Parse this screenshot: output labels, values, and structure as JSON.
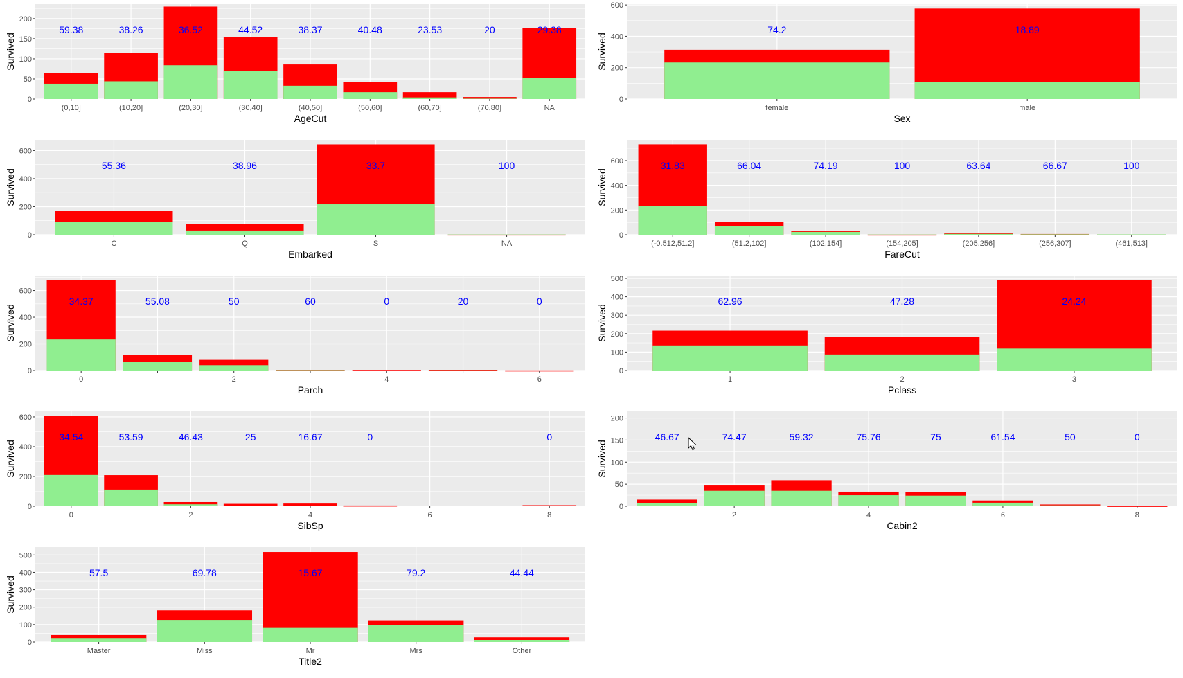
{
  "colors": {
    "survived": "#90ee90",
    "died": "#ff0000",
    "label": "#0000ff",
    "panel": "#ebebeb",
    "grid": "#ffffff"
  },
  "chart_data": [
    {
      "type": "bar",
      "xlabel": "AgeCut",
      "ylabel": "Survived",
      "ylim": [
        0,
        236
      ],
      "yticks": [
        0,
        50,
        100,
        150,
        200
      ],
      "categories": [
        "(0,10]",
        "(10,20]",
        "(20,30]",
        "(30,40]",
        "(40,50]",
        "(50,60]",
        "(60,70]",
        "(70,80]",
        "NA"
      ],
      "tick_labels": [
        "(0,10]",
        "(10,20]",
        "(20,30]",
        "(30,40]",
        "(40,50]",
        "(50,60]",
        "(60,70]",
        "(70,80]",
        "NA"
      ],
      "survived": [
        38,
        44,
        84,
        69,
        33,
        17,
        4,
        1,
        52
      ],
      "total": [
        64,
        115,
        230,
        155,
        86,
        42,
        17,
        5,
        177
      ],
      "percent_labels": [
        "59.38",
        "38.26",
        "36.52",
        "44.52",
        "38.37",
        "40.48",
        "23.53",
        "20",
        "29.38"
      ]
    },
    {
      "type": "bar",
      "xlabel": "Sex",
      "ylabel": "Survived",
      "ylim": [
        0,
        605
      ],
      "yticks": [
        0,
        200,
        400,
        600
      ],
      "categories": [
        "female",
        "male"
      ],
      "tick_labels": [
        "female",
        "male"
      ],
      "survived": [
        233,
        109
      ],
      "total": [
        314,
        577
      ],
      "percent_labels": [
        "74.2",
        "18.89"
      ]
    },
    {
      "type": "bar",
      "xlabel": "Embarked",
      "ylabel": "Survived",
      "ylim": [
        0,
        676
      ],
      "yticks": [
        0,
        200,
        400,
        600
      ],
      "categories": [
        "C",
        "Q",
        "S",
        "NA"
      ],
      "tick_labels": [
        "C",
        "Q",
        "S",
        "NA"
      ],
      "survived": [
        93,
        30,
        217,
        2
      ],
      "total": [
        168,
        77,
        644,
        2
      ],
      "percent_labels": [
        "55.36",
        "38.96",
        "33.7",
        "100"
      ]
    },
    {
      "type": "bar",
      "xlabel": "FareCut",
      "ylabel": "Survived",
      "ylim": [
        0,
        768
      ],
      "yticks": [
        0,
        200,
        400,
        600
      ],
      "categories": [
        "(-0.512,51.2]",
        "(51.2,102]",
        "(102,154]",
        "(154,205]",
        "(205,256]",
        "(256,307]",
        "(461,513]"
      ],
      "tick_labels": [
        "(-0.512,51.2]",
        "(51.2,102]",
        "(102,154]",
        "(154,205]",
        "(205,256]",
        "(256,307]",
        "(461,513]"
      ],
      "survived": [
        233,
        70,
        23,
        2,
        7,
        4,
        3
      ],
      "total": [
        732,
        106,
        31,
        2,
        11,
        6,
        3
      ],
      "percent_labels": [
        "31.83",
        "66.04",
        "74.19",
        "100",
        "63.64",
        "66.67",
        "100"
      ]
    },
    {
      "type": "bar",
      "xlabel": "Parch",
      "ylabel": "Survived",
      "ylim": [
        0,
        712
      ],
      "yticks": [
        0,
        200,
        400,
        600
      ],
      "categories": [
        "0",
        "1",
        "2",
        "3",
        "4",
        "5",
        "6"
      ],
      "tick_labels": [
        "0",
        "",
        "2",
        "",
        "4",
        "",
        "6"
      ],
      "survived": [
        233,
        65,
        40,
        3,
        0,
        1,
        0
      ],
      "total": [
        678,
        118,
        80,
        5,
        4,
        5,
        1
      ],
      "percent_labels": [
        "34.37",
        "55.08",
        "50",
        "60",
        "0",
        "20",
        "0"
      ]
    },
    {
      "type": "bar",
      "xlabel": "Pclass",
      "ylabel": "Survived",
      "ylim": [
        0,
        515
      ],
      "yticks": [
        0,
        100,
        200,
        300,
        400,
        500
      ],
      "categories": [
        "1",
        "2",
        "3"
      ],
      "tick_labels": [
        "1",
        "2",
        "3"
      ],
      "survived": [
        136,
        87,
        119
      ],
      "total": [
        216,
        184,
        491
      ],
      "percent_labels": [
        "62.96",
        "47.28",
        "24.24"
      ]
    },
    {
      "type": "bar",
      "xlabel": "SibSp",
      "ylabel": "Survived",
      "ylim": [
        0,
        637
      ],
      "yticks": [
        0,
        200,
        400,
        600
      ],
      "categories": [
        "0",
        "1",
        "2",
        "3",
        "4",
        "5",
        "8"
      ],
      "positions": [
        0,
        1,
        2,
        3,
        4,
        5,
        8
      ],
      "tick_values": [
        0,
        2,
        4,
        6,
        8
      ],
      "survived": [
        210,
        112,
        13,
        4,
        3,
        0,
        0
      ],
      "total": [
        608,
        209,
        28,
        16,
        18,
        5,
        7
      ],
      "percent_labels": [
        "34.54",
        "53.59",
        "46.43",
        "25",
        "16.67",
        "0",
        "0"
      ]
    },
    {
      "type": "bar",
      "xlabel": "Cabin2",
      "ylabel": "Survived",
      "ylim": [
        0,
        215
      ],
      "yticks": [
        0,
        50,
        100,
        150,
        200
      ],
      "categories": [
        "1",
        "2",
        "3",
        "4",
        "5",
        "6",
        "7",
        "8"
      ],
      "positions": [
        1,
        2,
        3,
        4,
        5,
        6,
        7,
        8
      ],
      "tick_values": [
        2,
        4,
        6,
        8
      ],
      "survived": [
        7,
        35,
        35,
        25,
        24,
        8,
        2,
        0
      ],
      "total": [
        15,
        47,
        59,
        33,
        32,
        13,
        4,
        1
      ],
      "percent_labels": [
        "46.67",
        "74.47",
        "59.32",
        "75.76",
        "75",
        "61.54",
        "50",
        "0"
      ]
    },
    {
      "type": "bar",
      "xlabel": "Title2",
      "ylabel": "Survived",
      "ylim": [
        0,
        545
      ],
      "yticks": [
        0,
        100,
        200,
        300,
        400,
        500
      ],
      "categories": [
        "Master",
        "Miss",
        "Mr",
        "Mrs",
        "Other"
      ],
      "tick_labels": [
        "Master",
        "Miss",
        "Mr",
        "Mrs",
        "Other"
      ],
      "survived": [
        23,
        127,
        81,
        99,
        12
      ],
      "total": [
        40,
        182,
        517,
        125,
        27
      ],
      "percent_labels": [
        "57.5",
        "69.78",
        "15.67",
        "79.2",
        "44.44"
      ]
    }
  ]
}
